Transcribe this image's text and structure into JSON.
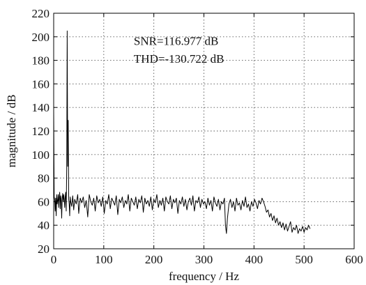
{
  "chart_data": {
    "type": "line",
    "title": "",
    "xlabel": "frequency / Hz",
    "ylabel": "magnitude / dB",
    "xlim": [
      0,
      600
    ],
    "ylim": [
      20,
      220
    ],
    "xticks": [
      0,
      100,
      200,
      300,
      400,
      500,
      600
    ],
    "yticks": [
      20,
      40,
      60,
      80,
      100,
      120,
      140,
      160,
      180,
      200,
      220
    ],
    "grid": true,
    "annotations": [
      {
        "text": "SNR=116.977 dB",
        "x": 160,
        "y": 193
      },
      {
        "text": "THD=-130.722 dB",
        "x": 160,
        "y": 178
      }
    ],
    "series": [
      {
        "x": [
          0,
          1,
          2,
          3,
          4,
          5,
          6,
          7,
          8,
          9,
          10,
          11,
          12,
          13,
          14,
          15,
          16,
          17,
          18,
          19,
          20,
          21,
          22,
          23,
          24,
          25,
          26,
          27,
          28,
          29,
          30,
          31,
          32,
          33,
          34,
          36,
          38,
          40,
          42,
          45,
          48,
          50,
          53,
          56,
          59,
          62,
          65,
          68,
          71,
          74,
          77,
          80,
          83,
          86,
          89,
          92,
          95,
          98,
          101,
          104,
          107,
          110,
          113,
          116,
          119,
          122,
          125,
          128,
          131,
          134,
          137,
          140,
          143,
          146,
          149,
          152,
          155,
          158,
          161,
          164,
          167,
          170,
          173,
          176,
          179,
          182,
          185,
          188,
          191,
          194,
          197,
          200,
          203,
          206,
          209,
          212,
          215,
          218,
          221,
          224,
          227,
          230,
          233,
          236,
          239,
          242,
          245,
          248,
          251,
          254,
          257,
          260,
          263,
          266,
          269,
          272,
          275,
          278,
          281,
          284,
          287,
          290,
          293,
          296,
          299,
          302,
          305,
          308,
          311,
          314,
          317,
          320,
          323,
          326,
          329,
          332,
          335,
          338,
          341,
          343,
          345,
          347,
          350,
          353,
          356,
          359,
          362,
          365,
          368,
          371,
          374,
          377,
          380,
          383,
          386,
          389,
          392,
          395,
          398,
          401,
          404,
          407,
          410,
          413,
          416,
          419,
          422,
          425,
          428,
          431,
          434,
          437,
          440,
          443,
          446,
          449,
          452,
          455,
          458,
          461,
          464,
          467,
          470,
          473,
          476,
          479,
          482,
          485,
          488,
          491,
          494,
          497,
          500,
          503,
          506,
          509,
          512
        ],
        "y": [
          138,
          64,
          62,
          52,
          63,
          48,
          66,
          58,
          61,
          66,
          55,
          64,
          68,
          54,
          65,
          61,
          46,
          63,
          67,
          60,
          66,
          62,
          55,
          64,
          68,
          52,
          88,
          205,
          90,
          129,
          62,
          58,
          48,
          64,
          60,
          56,
          65,
          53,
          62,
          58,
          66,
          50,
          63,
          59,
          64,
          55,
          61,
          47,
          66,
          60,
          57,
          63,
          52,
          65,
          59,
          62,
          56,
          64,
          50,
          61,
          58,
          66,
          54,
          63,
          60,
          57,
          65,
          49,
          62,
          59,
          64,
          55,
          61,
          58,
          66,
          52,
          63,
          60,
          57,
          64,
          54,
          62,
          59,
          65,
          51,
          63,
          58,
          61,
          56,
          64,
          53,
          62,
          59,
          66,
          55,
          61,
          57,
          63,
          52,
          64,
          60,
          58,
          65,
          54,
          62,
          59,
          63,
          50,
          61,
          58,
          64,
          56,
          62,
          53,
          60,
          63,
          57,
          65,
          52,
          61,
          59,
          64,
          55,
          62,
          58,
          60,
          54,
          63,
          57,
          61,
          52,
          64,
          59,
          56,
          62,
          53,
          60,
          58,
          63,
          40,
          33,
          46,
          58,
          62,
          55,
          60,
          52,
          63,
          57,
          59,
          53,
          61,
          56,
          64,
          55,
          58,
          52,
          60,
          56,
          62,
          59,
          54,
          61,
          58,
          63,
          60,
          56,
          51,
          53,
          47,
          50,
          44,
          48,
          42,
          46,
          40,
          43,
          38,
          42,
          36,
          41,
          35,
          39,
          43,
          34,
          38,
          36,
          40,
          33,
          37,
          35,
          39,
          34,
          38,
          36,
          40,
          37
        ]
      }
    ]
  }
}
